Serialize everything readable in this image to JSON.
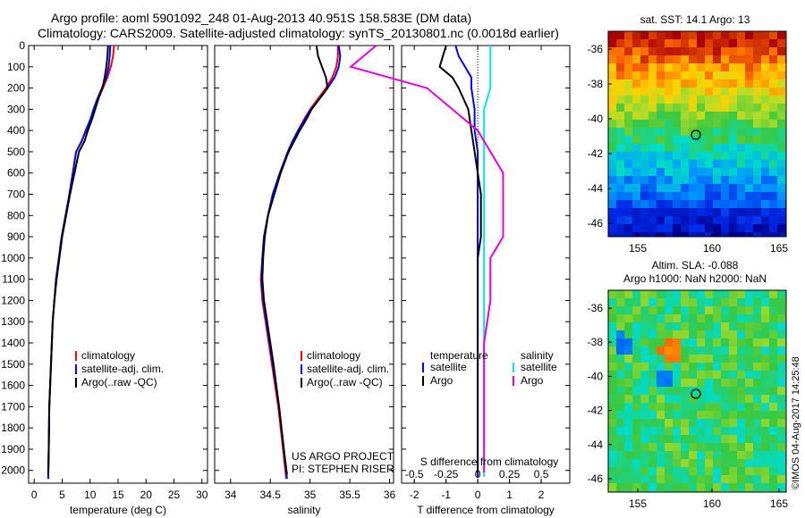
{
  "titles": {
    "line1": "Argo profile: aoml 5901092_248 01-Aug-2013 40.951S 158.583E (DM data)",
    "line2": "Climatology: CARS2009. Satellite-adjusted climatology: synTS_20130801.nc (0.0018d earlier)"
  },
  "colors": {
    "climatology": "#ff0000",
    "satellite": "#0000ff",
    "argo": "#000000",
    "sal_satellite": "#00e5ee",
    "sal_argo": "#e000e0"
  },
  "depth_axis": {
    "ticks": [
      "0",
      "100",
      "200",
      "300",
      "400",
      "500",
      "600",
      "700",
      "800",
      "900",
      "1000",
      "1100",
      "1200",
      "1300",
      "1400",
      "1500",
      "1600",
      "1700",
      "1800",
      "1900",
      "2000"
    ]
  },
  "annotations": {
    "project": "US ARGO PROJECT",
    "pi": "PI: STEPHEN RISER",
    "diff_S_label": "S difference from climatology",
    "watermark": "©IMOS 04-Aug-2017 14:25:48"
  },
  "legend_profiles": [
    "climatology",
    "satellite-adj. clim.",
    "Argo(..raw -QC)"
  ],
  "legend_diff": {
    "temperature_header": "temperature",
    "salinity_header": "salinity",
    "t_satellite": "satellite",
    "t_argo": "Argo",
    "s_satellite": "satellite",
    "s_argo": "Argo"
  },
  "maps": {
    "sst": {
      "title": "sat. SST: 14.1 Argo: 13",
      "yticks": [
        "-36",
        "-38",
        "-40",
        "-42",
        "-44",
        "-46"
      ],
      "xticks": [
        "155",
        "160",
        "165"
      ]
    },
    "sla": {
      "title1": "Altim. SLA: -0.088",
      "title2": "Argo h1000: NaN h2000: NaN",
      "yticks": [
        "-36",
        "-38",
        "-40",
        "-42",
        "-44",
        "-46"
      ],
      "xticks": [
        "155",
        "160",
        "165"
      ]
    },
    "argo_position": {
      "lon": 158.583,
      "lat": -40.951
    }
  },
  "chart_data": [
    {
      "type": "line",
      "name": "temperature",
      "xlabel": "temperature (deg C)",
      "ylabel": "",
      "xlim": [
        -1,
        31
      ],
      "ylim": [
        2060,
        0
      ],
      "xticks": [
        0,
        5,
        10,
        15,
        20,
        25,
        30
      ],
      "series": [
        {
          "name": "climatology",
          "x": [
            14.3,
            14.1,
            13.7,
            13.1,
            12.3,
            11.4,
            10.7,
            10.1,
            9.3,
            8.5,
            7.5,
            6.9,
            6.3,
            5.6,
            4.9,
            4.4,
            3.9,
            3.6,
            3.3,
            3.0,
            2.7,
            2.6,
            2.5
          ],
          "y": [
            0,
            50,
            100,
            150,
            200,
            250,
            300,
            350,
            400,
            450,
            500,
            600,
            700,
            800,
            900,
            1000,
            1100,
            1200,
            1300,
            1500,
            1700,
            1900,
            2040
          ]
        },
        {
          "name": "satellite-adj. clim.",
          "x": [
            13.6,
            13.5,
            13.3,
            12.9,
            12.1,
            11.3,
            10.6,
            10.0,
            9.2,
            8.5,
            7.5,
            6.9,
            6.3,
            5.6,
            4.9,
            4.4,
            3.9,
            3.6,
            3.3,
            3.0,
            2.7,
            2.6,
            2.5
          ],
          "y": [
            0,
            50,
            100,
            150,
            200,
            250,
            300,
            350,
            400,
            450,
            500,
            600,
            700,
            800,
            900,
            1000,
            1100,
            1200,
            1300,
            1500,
            1700,
            1900,
            2040
          ]
        },
        {
          "name": "Argo(..raw -QC)",
          "x": [
            13.2,
            13.1,
            12.9,
            12.6,
            12.2,
            11.5,
            10.9,
            10.3,
            9.6,
            9.0,
            8.0,
            7.2,
            6.4,
            5.7,
            5.0,
            4.5,
            4.0,
            3.6,
            3.3,
            3.0,
            2.7,
            2.6,
            2.5
          ],
          "y": [
            0,
            50,
            100,
            150,
            200,
            250,
            300,
            350,
            400,
            450,
            500,
            600,
            700,
            800,
            900,
            1000,
            1100,
            1200,
            1300,
            1500,
            1700,
            1900,
            2020
          ]
        }
      ]
    },
    {
      "type": "line",
      "name": "salinity",
      "xlabel": "salinity",
      "ylabel": "",
      "xlim": [
        33.8,
        36.05
      ],
      "ylim": [
        2060,
        0
      ],
      "xticks": [
        34,
        34.5,
        35,
        35.5,
        36
      ],
      "xticklabels": [
        "34",
        "34.5",
        "35",
        "35.5",
        "36"
      ],
      "series": [
        {
          "name": "climatology",
          "x": [
            35.35,
            35.35,
            35.33,
            35.28,
            35.2,
            35.1,
            35.0,
            34.92,
            34.85,
            34.78,
            34.72,
            34.62,
            34.53,
            34.47,
            34.42,
            34.4,
            34.38,
            34.4,
            34.44,
            34.52,
            34.6,
            34.66,
            34.7
          ],
          "y": [
            0,
            50,
            100,
            150,
            200,
            250,
            300,
            350,
            400,
            450,
            500,
            600,
            700,
            800,
            900,
            1000,
            1100,
            1200,
            1300,
            1500,
            1700,
            1900,
            2040
          ]
        },
        {
          "name": "satellite-adj. clim.",
          "x": [
            35.36,
            35.38,
            35.36,
            35.31,
            35.22,
            35.12,
            35.01,
            34.93,
            34.85,
            34.78,
            34.72,
            34.62,
            34.53,
            34.47,
            34.42,
            34.4,
            34.39,
            34.41,
            34.45,
            34.53,
            34.61,
            34.67,
            34.71
          ],
          "y": [
            0,
            50,
            100,
            150,
            200,
            250,
            300,
            350,
            400,
            450,
            500,
            600,
            700,
            800,
            900,
            1000,
            1100,
            1200,
            1300,
            1500,
            1700,
            1900,
            2040
          ]
        },
        {
          "name": "Argo(..raw -QC)",
          "x": [
            35.08,
            35.1,
            35.15,
            35.2,
            35.22,
            35.12,
            35.02,
            34.95,
            34.87,
            34.8,
            34.73,
            34.63,
            34.55,
            34.47,
            34.43,
            34.41,
            34.4,
            34.42,
            34.46,
            34.54,
            34.61,
            34.67,
            34.71
          ],
          "y": [
            0,
            50,
            100,
            150,
            200,
            250,
            300,
            350,
            400,
            450,
            500,
            600,
            700,
            800,
            900,
            1000,
            1100,
            1200,
            1300,
            1500,
            1700,
            1900,
            2020
          ]
        }
      ]
    },
    {
      "type": "line",
      "name": "difference",
      "xlabel": "T difference from climatology",
      "ylabel": "",
      "xlim": [
        -2.4,
        2.9
      ],
      "ylim": [
        2060,
        0
      ],
      "xticks": [
        -2,
        -1,
        0,
        1,
        2
      ],
      "s_axis_ticks": [
        -0.5,
        -0.25,
        0,
        0.25,
        0.5
      ],
      "s_axis_ticklabels": [
        "-0.5",
        "-0.25",
        "0",
        "0.25",
        "0.5"
      ],
      "series": [
        {
          "name": "temperature satellite",
          "x": [
            -0.7,
            -0.6,
            -0.4,
            -0.2,
            -0.2,
            -0.1,
            -0.1,
            0,
            0,
            0,
            0,
            0,
            0,
            0,
            0,
            0,
            0,
            0,
            0
          ],
          "y": [
            0,
            50,
            100,
            150,
            200,
            300,
            400,
            500,
            600,
            700,
            800,
            900,
            1000,
            1200,
            1400,
            1600,
            1800,
            1900,
            2030
          ]
        },
        {
          "name": "temperature Argo",
          "x": [
            -1.0,
            -1.1,
            -1.2,
            -0.8,
            -0.6,
            -0.3,
            -0.2,
            -0.1,
            0,
            0.1,
            0.1,
            0.1,
            0,
            0,
            0,
            0,
            0,
            0,
            0
          ],
          "y": [
            0,
            50,
            100,
            150,
            200,
            300,
            400,
            500,
            600,
            700,
            800,
            900,
            1000,
            1200,
            1400,
            1600,
            1800,
            1900,
            2010
          ]
        },
        {
          "name": "salinity satellite",
          "x": [
            0.1,
            0.1,
            0.1,
            0.1,
            0.1,
            0.05,
            0.05,
            0.05,
            0.05,
            0.05,
            0.05,
            0.05,
            0.05,
            0.05,
            0.05,
            0.05,
            0.05,
            0.05,
            0.05
          ],
          "y": [
            0,
            50,
            100,
            150,
            200,
            300,
            400,
            500,
            600,
            700,
            800,
            900,
            1000,
            1200,
            1400,
            1600,
            1800,
            1900,
            2030
          ]
        },
        {
          "name": "salinity Argo",
          "x": [
            -0.8,
            -0.9,
            -1.0,
            -0.7,
            -0.4,
            -0.2,
            0,
            0.1,
            0.2,
            0.2,
            0.2,
            0.2,
            0.1,
            0.1,
            0.05,
            0.05,
            0.05,
            0.05,
            0.05
          ],
          "y": [
            0,
            50,
            100,
            150,
            200,
            300,
            400,
            500,
            600,
            700,
            800,
            900,
            1000,
            1200,
            1400,
            1600,
            1800,
            1900,
            2010
          ]
        }
      ]
    }
  ]
}
